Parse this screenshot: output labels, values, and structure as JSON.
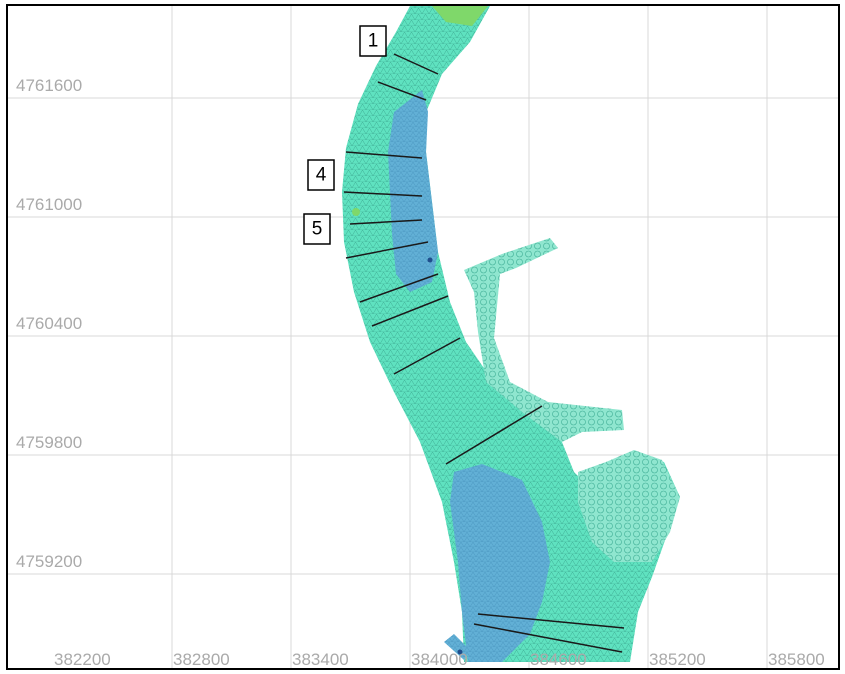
{
  "map": {
    "x_axis_labels": [
      "382200",
      "382800",
      "383400",
      "384000",
      "384600",
      "385200",
      "385800"
    ],
    "y_axis_labels": [
      "4761600",
      "4761000",
      "4760400",
      "4759800",
      "4759200"
    ],
    "section_labels": [
      "1",
      "4",
      "5"
    ],
    "colors": {
      "frame": "#000000",
      "grid": "#d9d9d9",
      "axis_text": "#aaaaaa",
      "mesh_fill": "#5fe2c0",
      "mesh_fill_light": "#8fe6cf",
      "deep_channel": "#62b0d6",
      "shallow_patch": "#7fd86a",
      "mesh_line": "#3fae95",
      "cross_section": "#1a1a1a"
    },
    "layers": [
      "grid",
      "channel-mesh",
      "depth-shading",
      "cross-sections",
      "section-labels",
      "axis-labels"
    ]
  }
}
